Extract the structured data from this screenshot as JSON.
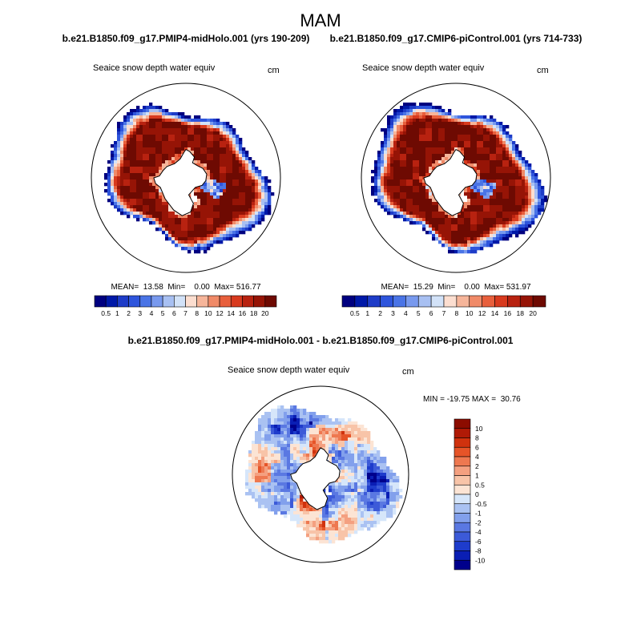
{
  "figure_title": "MAM",
  "colors": {
    "boundary": "#000000",
    "land": "#ffffff"
  },
  "chart_data": [
    {
      "type": "heatmap",
      "projection": "south-polar-stereographic",
      "case_title": "b.e21.B1850.f09_g17.PMIP4-midHolo.001 (yrs 190-209)",
      "title": "Seaice snow depth water equiv",
      "units": "cm",
      "stats_text": "MEAN=  13.58  Min=    0.00  Max= 516.77",
      "stats": {
        "mean": 13.58,
        "min": 0.0,
        "max": 516.77
      },
      "colorbar": {
        "orientation": "horizontal",
        "levels": [
          "0.5",
          "1",
          "2",
          "3",
          "4",
          "5",
          "6",
          "7",
          "8",
          "10",
          "12",
          "14",
          "16",
          "18",
          "20"
        ],
        "colors": [
          "#000080",
          "#0019a8",
          "#1e3cc8",
          "#2e55dc",
          "#4a74e6",
          "#7899ee",
          "#a8c0f2",
          "#d2e2f8",
          "#fcded0",
          "#f6b59a",
          "#f08a68",
          "#e85f3c",
          "#d83a1e",
          "#b82210",
          "#961406",
          "#6e0a02"
        ]
      }
    },
    {
      "type": "heatmap",
      "projection": "south-polar-stereographic",
      "case_title": "b.e21.B1850.f09_g17.CMIP6-piControl.001 (yrs 714-733)",
      "title": "Seaice snow depth water equiv",
      "units": "cm",
      "stats_text": "MEAN=  15.29  Min=    0.00  Max= 531.97",
      "stats": {
        "mean": 15.29,
        "min": 0.0,
        "max": 531.97
      },
      "colorbar": {
        "orientation": "horizontal",
        "levels": [
          "0.5",
          "1",
          "2",
          "3",
          "4",
          "5",
          "6",
          "7",
          "8",
          "10",
          "12",
          "14",
          "16",
          "18",
          "20"
        ],
        "colors": [
          "#000080",
          "#0019a8",
          "#1e3cc8",
          "#2e55dc",
          "#4a74e6",
          "#7899ee",
          "#a8c0f2",
          "#d2e2f8",
          "#fcded0",
          "#f6b59a",
          "#f08a68",
          "#e85f3c",
          "#d83a1e",
          "#b82210",
          "#961406",
          "#6e0a02"
        ]
      }
    },
    {
      "type": "heatmap",
      "projection": "south-polar-stereographic",
      "case_title": "b.e21.B1850.f09_g17.PMIP4-midHolo.001 - b.e21.B1850.f09_g17.CMIP6-piControl.001",
      "title": "Seaice snow depth water equiv",
      "units": "cm",
      "stats_text": "MIN = -19.75 MAX =  30.76",
      "stats": {
        "min": -19.75,
        "max": 30.76
      },
      "colorbar": {
        "orientation": "vertical",
        "levels": [
          "-10",
          "-8",
          "-6",
          "-4",
          "-2",
          "-1",
          "-0.5",
          "0",
          "0.5",
          "1",
          "2",
          "4",
          "6",
          "8",
          "10"
        ],
        "colors": [
          "#00008c",
          "#0a1eb4",
          "#1e3ccc",
          "#3c5ad8",
          "#5a78e2",
          "#82a0ec",
          "#aac2f2",
          "#d6e6fa",
          "#fce4d4",
          "#f8c4a8",
          "#f4a080",
          "#ee7850",
          "#e65428",
          "#d0320e",
          "#b01a06",
          "#8c0c00"
        ]
      }
    }
  ]
}
